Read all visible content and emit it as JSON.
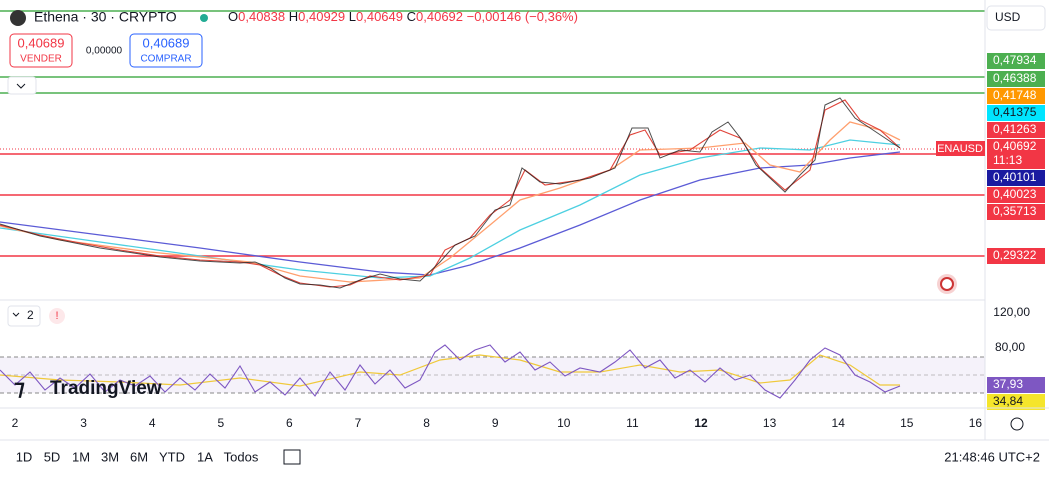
{
  "header": {
    "symbol": "Ethena · 30 · CRYPTO",
    "ohlc": [
      {
        "label": "O",
        "value": "0,40838"
      },
      {
        "label": "H",
        "value": "0,40929"
      },
      {
        "label": "L",
        "value": "0,40649"
      },
      {
        "label": "C",
        "value": "0,40692"
      }
    ],
    "change": "−0,00146 (−0,36%)"
  },
  "trade": {
    "sell_price": "0,40689",
    "sell_label": "VENDER",
    "spread": "0,00000",
    "buy_price": "0,40689",
    "buy_label": "COMPRAR"
  },
  "currency": "USD",
  "symbol_tag": "ENAUSD",
  "price_labels": [
    {
      "text": "0,47934",
      "color": "#4caf50"
    },
    {
      "text": "0,46388",
      "color": "#4caf50"
    },
    {
      "text": "0,41748",
      "color": "#ff9800"
    },
    {
      "text": "0,41375",
      "color": "#00e5ff"
    },
    {
      "text": "0,41263",
      "color": "#f23645"
    },
    {
      "text": "0,40692",
      "color": "#f23645"
    },
    {
      "text": "11:13",
      "color": "#f23645"
    },
    {
      "text": "0,40101",
      "color": "#1a1aa0"
    },
    {
      "text": "0,40023",
      "color": "#f23645"
    },
    {
      "text": "0,35713",
      "color": "#f23645"
    },
    {
      "text": "0,29322",
      "color": "#f23645"
    }
  ],
  "rsi": {
    "indicator_count": "2",
    "levels": [
      "120,00",
      "80,00"
    ],
    "rsi_value": "37,93",
    "ma_value": "34,84"
  },
  "logo": "TradingView",
  "x_axis": [
    "2",
    "3",
    "4",
    "5",
    "6",
    "7",
    "8",
    "9",
    "10",
    "11",
    "12",
    "13",
    "14",
    "15",
    "16"
  ],
  "ranges": [
    "1D",
    "5D",
    "1M",
    "3M",
    "6M",
    "YTD",
    "1A",
    "Todos"
  ],
  "clock": "21:48:46 UTC+2"
}
